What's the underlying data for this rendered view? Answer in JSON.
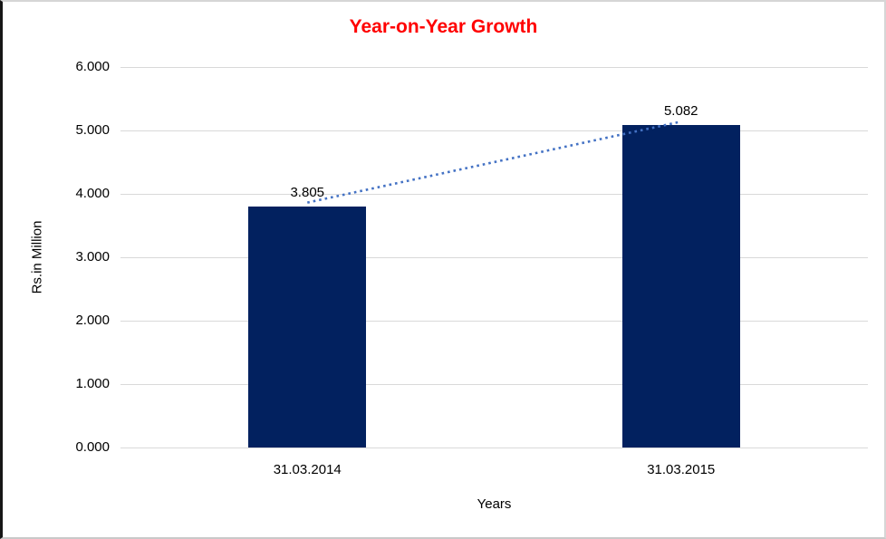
{
  "chart_data": {
    "type": "bar",
    "title": "Year-on-Year Growth",
    "xlabel": "Years",
    "ylabel": "Rs.in Million",
    "categories": [
      "31.03.2014",
      "31.03.2015"
    ],
    "values": [
      3.805,
      5.082
    ],
    "value_labels": [
      "3.805",
      "5.082"
    ],
    "y_ticks": [
      "0.000",
      "1.000",
      "2.000",
      "3.000",
      "4.000",
      "5.000",
      "6.000"
    ],
    "ylim": [
      0,
      6
    ],
    "grid": "horizontal",
    "legend": "none",
    "colors": {
      "title": "#FF0000",
      "bar": "#02215F",
      "gridline": "#D9D9D9",
      "trendline": "#4472C4",
      "text": "#000000"
    },
    "trendline": {
      "type": "dotted",
      "connects": [
        "top of 31.03.2014 bar",
        "top of 31.03.2015 bar"
      ]
    }
  }
}
